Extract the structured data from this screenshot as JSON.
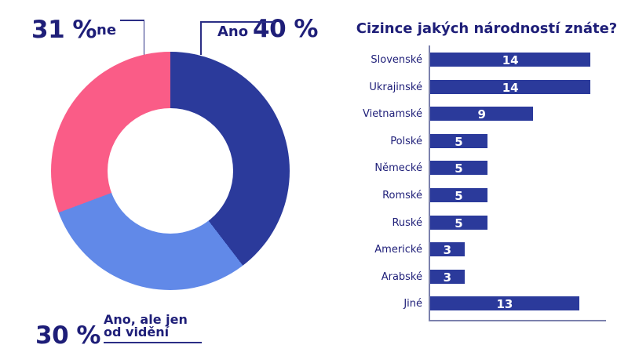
{
  "chart_data": [
    {
      "type": "pie",
      "donut": true,
      "title": "",
      "labels": [
        "Ano",
        "Ano, ale jen od vidění",
        "ne"
      ],
      "values": [
        40,
        30,
        31
      ],
      "unit": "%",
      "colors": [
        "#2b3a9b",
        "#6189e8",
        "#fa5c87"
      ],
      "start_angle_deg": 0,
      "direction": "clockwise",
      "legend_position": "callout-labels"
    },
    {
      "type": "bar",
      "orientation": "horizontal",
      "title": "Cizince jakých národností znáte?",
      "categories": [
        "Slovenské",
        "Ukrajinské",
        "Vietnamské",
        "Polské",
        "Německé",
        "Romské",
        "Ruské",
        "Americké",
        "Arabské",
        "Jiné"
      ],
      "values": [
        14,
        14,
        9,
        5,
        5,
        5,
        5,
        3,
        3,
        13
      ],
      "xlim": [
        0,
        15.3
      ],
      "grid": false,
      "bar_color": "#2b3a9b",
      "value_label_color": "#ffffff",
      "value_labels_inside": true
    }
  ],
  "donut_labels": {
    "ne_pct": "31 %",
    "ne": "ne",
    "ano": "Ano",
    "ano_pct": "40 %",
    "od_videni_pct": "30 %",
    "od_videni_line1": "Ano, ale jen",
    "od_videni_line2": "od vidění"
  },
  "colors": {
    "navy_text": "#1e1e78",
    "axis": "#7b81ad",
    "callout_line": "#2b2e85",
    "background": "#ffffff"
  }
}
